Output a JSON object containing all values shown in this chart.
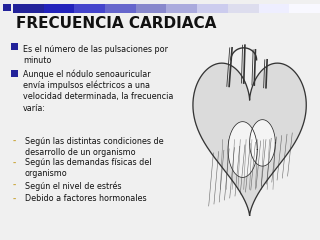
{
  "title": "FRECUENCIA CARDIACA",
  "title_color": "#111111",
  "title_fontsize": 11,
  "title_bold": true,
  "background_color": "#f0f0f0",
  "top_bar_left_color": "#22229a",
  "top_bar_right_color": "#ccccee",
  "bullet_color": "#22229a",
  "dash_color": "#ccaa44",
  "bullet1": "Es el número de las pulsaciones por\nminuto",
  "bullet2": "Aunque el nódulo senoauricular\nenvía impulsos eléctricos a una\nvelocidad determinada, la frecuencia\nvaría:",
  "sub_bullets": [
    "Según las distintas condiciones de\ndesarrollo de un organismo",
    "Según las demandas físicas del\norganismo",
    "Según el nivel de estrés",
    "Debido a factores hormonales"
  ],
  "text_fontsize": 5.8,
  "text_color": "#111111",
  "fig_width": 3.2,
  "fig_height": 2.4,
  "fig_dpi": 100
}
